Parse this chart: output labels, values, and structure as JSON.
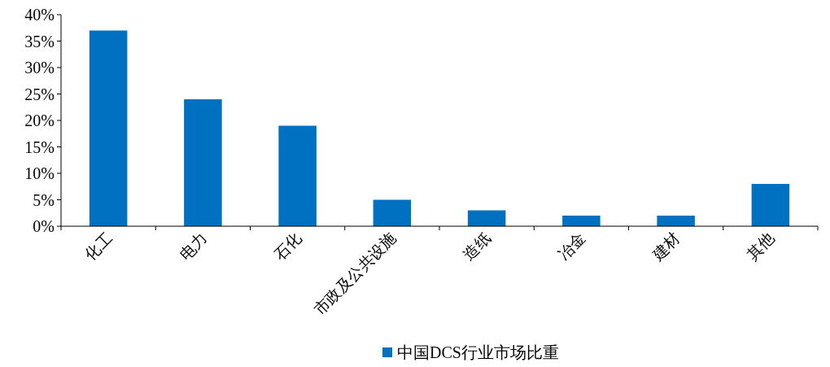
{
  "chart_data": {
    "type": "bar",
    "categories": [
      "化工",
      "电力",
      "石化",
      "市政及公共设施",
      "造纸",
      "冶金",
      "建材",
      "其他"
    ],
    "series": [
      {
        "name": "中国DCS行业市场比重",
        "color": "#0070c0",
        "values": [
          37,
          24,
          19,
          5,
          3,
          2,
          2,
          8
        ]
      }
    ],
    "ylim": [
      0,
      40
    ],
    "yticks": [
      {
        "value": 0,
        "label": "0%"
      },
      {
        "value": 5,
        "label": "5%"
      },
      {
        "value": 10,
        "label": "10%"
      },
      {
        "value": 15,
        "label": "15%"
      },
      {
        "value": 20,
        "label": "20%"
      },
      {
        "value": 25,
        "label": "25%"
      },
      {
        "value": 30,
        "label": "30%"
      },
      {
        "value": 35,
        "label": "35%"
      },
      {
        "value": 40,
        "label": "40%"
      }
    ],
    "grid": false,
    "legend": "bottom"
  }
}
